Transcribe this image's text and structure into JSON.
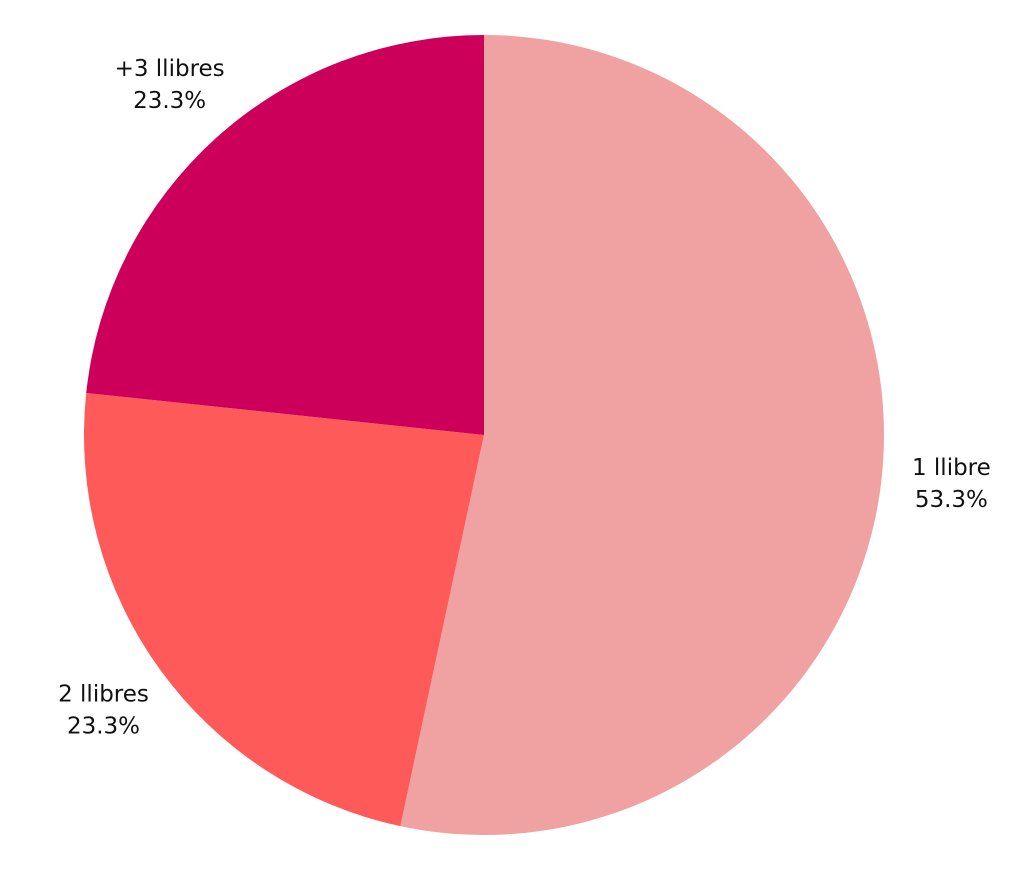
{
  "chart_data": {
    "type": "pie",
    "categories": [
      "1 llibre",
      "2 llibres",
      "+3 llibres"
    ],
    "values": [
      53.3,
      23.3,
      23.3
    ],
    "value_labels": [
      "53.3%",
      "23.3%",
      "23.3%"
    ],
    "colors": [
      "#f0a1a1",
      "#ff5a5a",
      "#cc005a"
    ]
  }
}
